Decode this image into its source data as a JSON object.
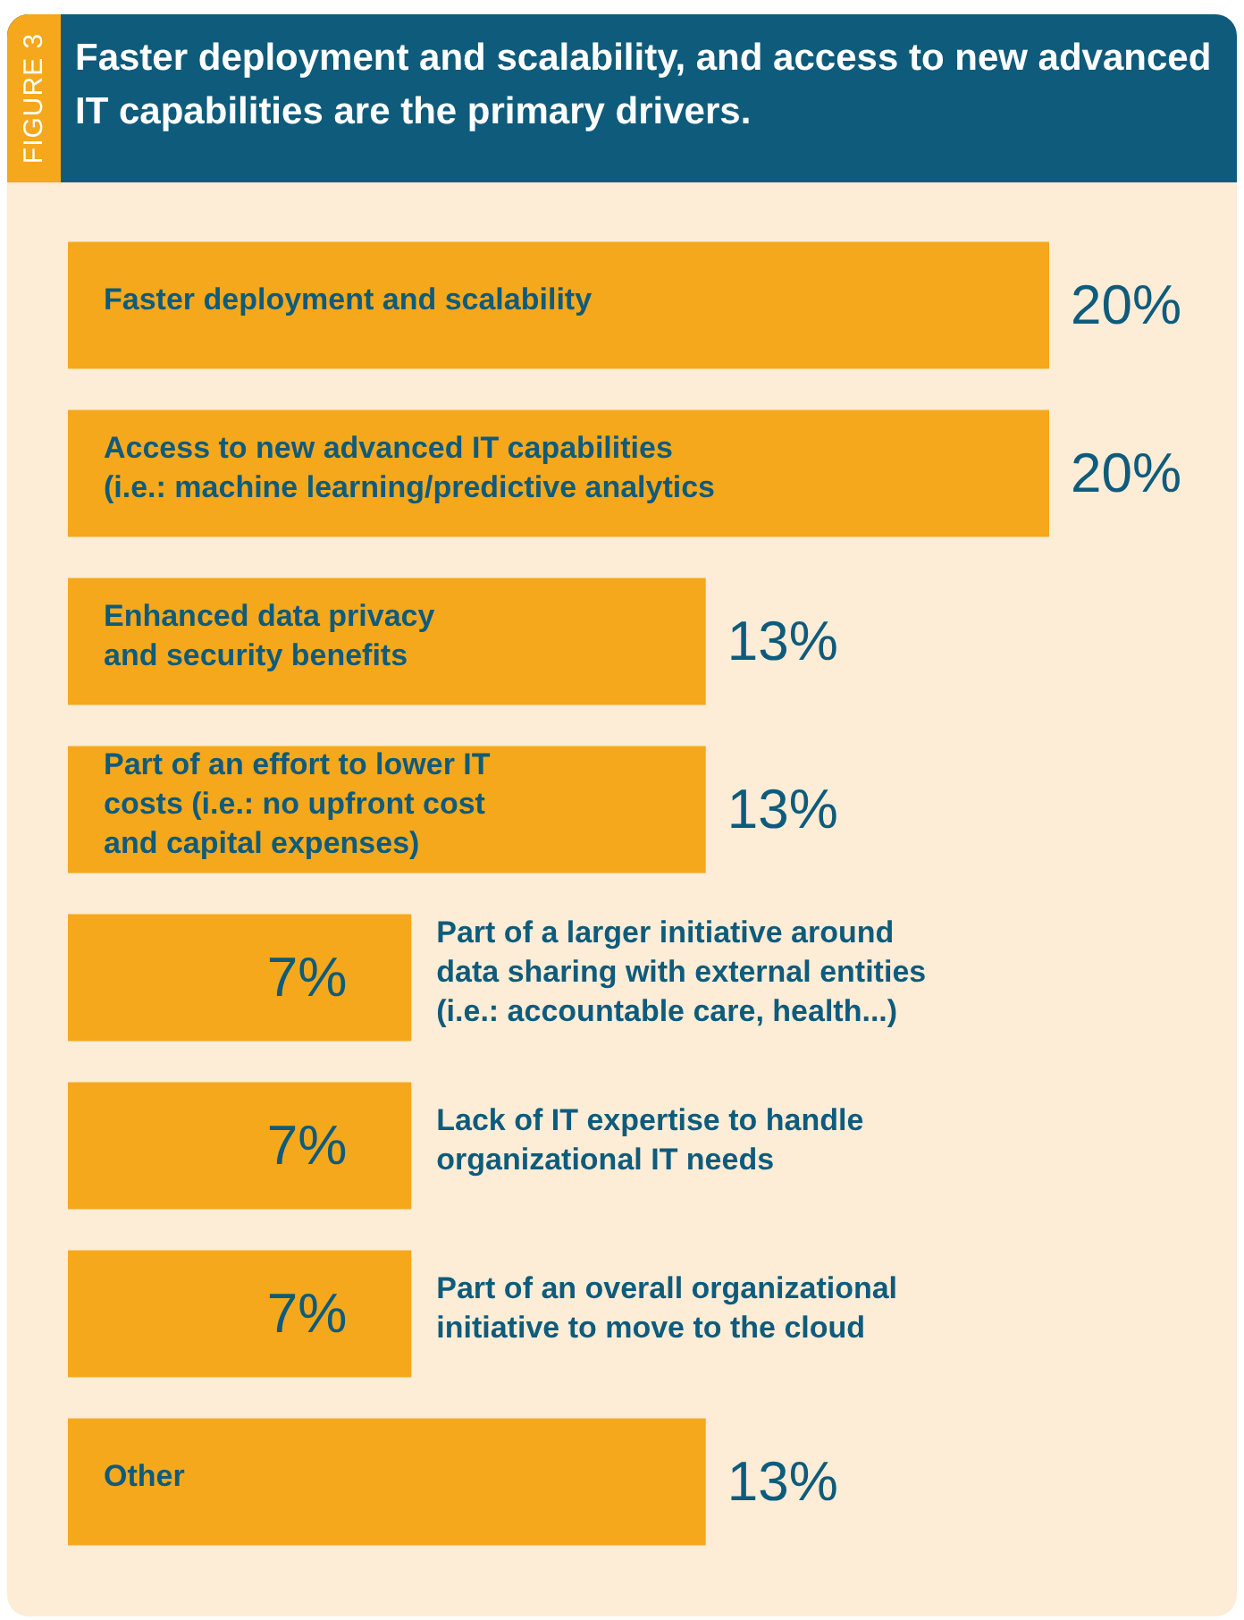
{
  "chart_data": {
    "type": "bar",
    "orientation": "horizontal",
    "title": "Faster deployment and scalability, and access to new advanced IT capabilities are the primary drivers.",
    "annotations": [
      "FIGURE 3"
    ],
    "categories": [
      "Faster deployment and scalability",
      "Access to new advanced IT capabilities (i.e.: machine learning/predictive analytics",
      "Enhanced data privacy and security benefits",
      "Part of an effort to lower IT costs (i.e.: no upfront cost and capital expenses)",
      "Part of a larger initiative around data sharing with external entities (i.e.: accountable care, health...)",
      "Lack of IT expertise to handle organizational IT needs",
      "Part of an overall organizational initiative to move to the cloud",
      "Other"
    ],
    "values": [
      20,
      20,
      13,
      13,
      7,
      7,
      7,
      13
    ],
    "color": "#f5a81c",
    "value_labels": [
      "20%",
      "20%",
      "13%",
      "13%",
      "7%",
      "7%",
      "7%",
      "13%"
    ]
  }
}
